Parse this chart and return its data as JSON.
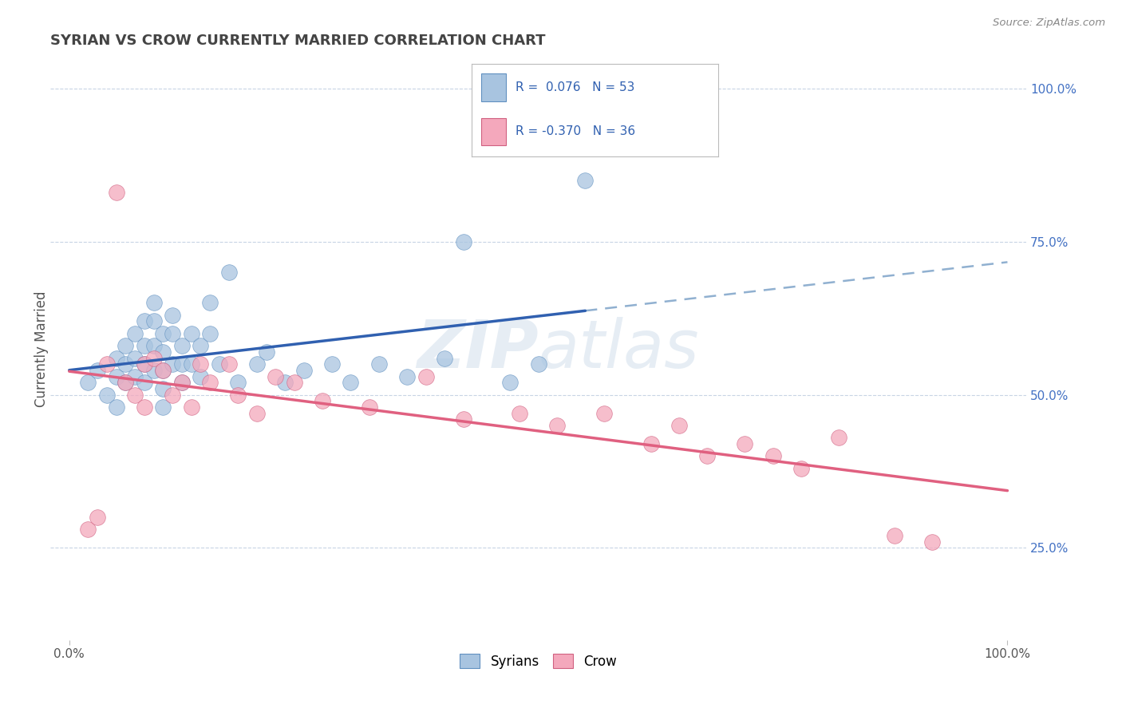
{
  "title": "SYRIAN VS CROW CURRENTLY MARRIED CORRELATION CHART",
  "source_text": "Source: ZipAtlas.com",
  "ylabel": "Currently Married",
  "right_ytick_labels": [
    "25.0%",
    "50.0%",
    "75.0%",
    "100.0%"
  ],
  "right_ytick_vals": [
    0.25,
    0.5,
    0.75,
    1.0
  ],
  "xtick_labels": [
    "0.0%",
    "100.0%"
  ],
  "xtick_vals": [
    0.0,
    1.0
  ],
  "xlim": [
    -0.02,
    1.02
  ],
  "ylim": [
    0.1,
    1.05
  ],
  "syrian_color": "#a8c4e0",
  "syrian_edge": "#6090c0",
  "crow_color": "#f4a8bc",
  "crow_edge": "#d06080",
  "trendline_syrian_color": "#3060b0",
  "trendline_crow_color": "#e06080",
  "trendline_dashed_color": "#90b0d0",
  "watermark": "ZIPatlas",
  "background_color": "#ffffff",
  "grid_color": "#c8d4e4",
  "syrians_x": [
    0.02,
    0.03,
    0.04,
    0.05,
    0.05,
    0.05,
    0.06,
    0.06,
    0.06,
    0.07,
    0.07,
    0.07,
    0.08,
    0.08,
    0.08,
    0.08,
    0.09,
    0.09,
    0.09,
    0.09,
    0.1,
    0.1,
    0.1,
    0.1,
    0.1,
    0.11,
    0.11,
    0.11,
    0.12,
    0.12,
    0.12,
    0.13,
    0.13,
    0.14,
    0.14,
    0.15,
    0.15,
    0.16,
    0.17,
    0.18,
    0.2,
    0.21,
    0.23,
    0.25,
    0.28,
    0.3,
    0.33,
    0.36,
    0.4,
    0.42,
    0.47,
    0.5,
    0.55
  ],
  "syrians_y": [
    0.52,
    0.54,
    0.5,
    0.56,
    0.53,
    0.48,
    0.58,
    0.55,
    0.52,
    0.6,
    0.56,
    0.53,
    0.62,
    0.58,
    0.55,
    0.52,
    0.65,
    0.62,
    0.58,
    0.54,
    0.6,
    0.57,
    0.54,
    0.51,
    0.48,
    0.63,
    0.6,
    0.55,
    0.58,
    0.55,
    0.52,
    0.6,
    0.55,
    0.58,
    0.53,
    0.65,
    0.6,
    0.55,
    0.7,
    0.52,
    0.55,
    0.57,
    0.52,
    0.54,
    0.55,
    0.52,
    0.55,
    0.53,
    0.56,
    0.75,
    0.52,
    0.55,
    0.85
  ],
  "crow_x": [
    0.02,
    0.03,
    0.04,
    0.05,
    0.06,
    0.07,
    0.08,
    0.08,
    0.09,
    0.1,
    0.11,
    0.12,
    0.13,
    0.14,
    0.15,
    0.17,
    0.18,
    0.2,
    0.22,
    0.24,
    0.27,
    0.32,
    0.38,
    0.42,
    0.48,
    0.52,
    0.57,
    0.62,
    0.65,
    0.68,
    0.72,
    0.75,
    0.78,
    0.82,
    0.88,
    0.92
  ],
  "crow_y": [
    0.28,
    0.3,
    0.55,
    0.83,
    0.52,
    0.5,
    0.55,
    0.48,
    0.56,
    0.54,
    0.5,
    0.52,
    0.48,
    0.55,
    0.52,
    0.55,
    0.5,
    0.47,
    0.53,
    0.52,
    0.49,
    0.48,
    0.53,
    0.46,
    0.47,
    0.45,
    0.47,
    0.42,
    0.45,
    0.4,
    0.42,
    0.4,
    0.38,
    0.43,
    0.27,
    0.26
  ]
}
